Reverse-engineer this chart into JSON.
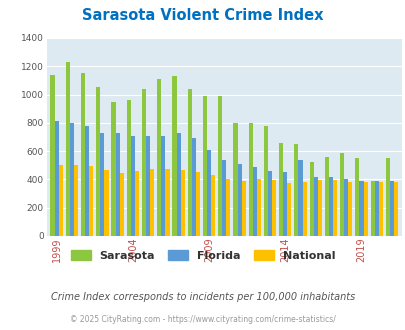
{
  "title": "Sarasota Violent Crime Index",
  "subtitle": "Crime Index corresponds to incidents per 100,000 inhabitants",
  "footer": "© 2025 CityRating.com - https://www.cityrating.com/crime-statistics/",
  "years": [
    1999,
    2000,
    2001,
    2002,
    2003,
    2004,
    2005,
    2006,
    2007,
    2008,
    2009,
    2010,
    2011,
    2012,
    2013,
    2014,
    2015,
    2016,
    2017,
    2018,
    2019,
    2020,
    2021
  ],
  "sarasota": [
    1140,
    1230,
    1150,
    1050,
    950,
    960,
    1040,
    1110,
    1130,
    1040,
    990,
    990,
    800,
    800,
    780,
    660,
    650,
    525,
    560,
    585,
    550,
    390,
    550
  ],
  "florida": [
    810,
    800,
    780,
    730,
    730,
    710,
    710,
    710,
    730,
    690,
    610,
    540,
    510,
    490,
    460,
    450,
    540,
    420,
    415,
    405,
    390,
    390,
    390
  ],
  "national": [
    505,
    505,
    495,
    465,
    445,
    460,
    475,
    475,
    465,
    450,
    430,
    405,
    390,
    400,
    395,
    375,
    385,
    395,
    395,
    385,
    380,
    380,
    380
  ],
  "sarasota_color": "#8dc63f",
  "florida_color": "#5b9bd5",
  "national_color": "#ffc000",
  "bg_color": "#deeaf1",
  "title_color": "#0070c0",
  "subtitle_color": "#555555",
  "footer_color": "#999999",
  "ylim": [
    0,
    1400
  ],
  "yticks": [
    0,
    200,
    400,
    600,
    800,
    1000,
    1200,
    1400
  ],
  "tick_years": [
    1999,
    2004,
    2009,
    2014,
    2019
  ],
  "xtick_color": "#c0504d"
}
